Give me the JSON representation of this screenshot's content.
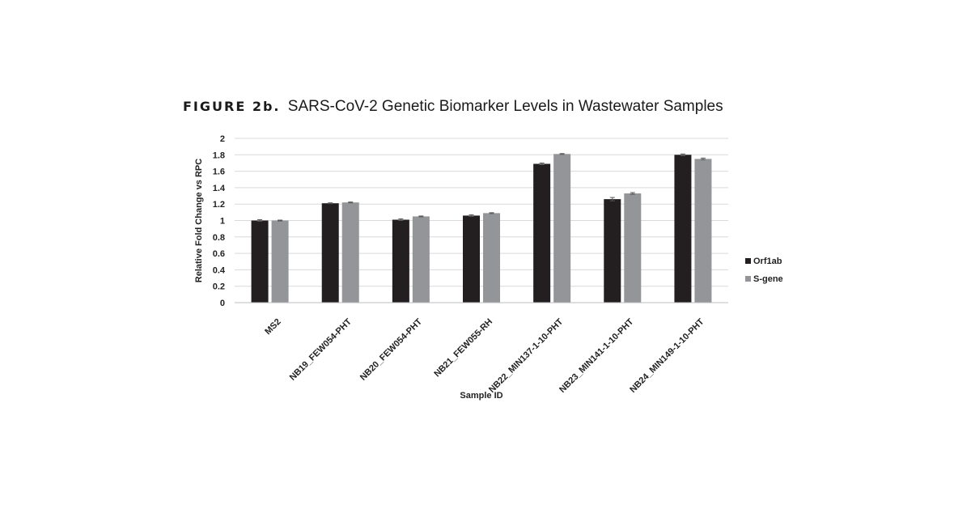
{
  "figure": {
    "label": "FIGURE 2b.",
    "title": "SARS-CoV-2 Genetic Biomarker Levels in Wastewater Samples"
  },
  "chart_data": {
    "type": "bar",
    "categories": [
      "MS2",
      "NB19_FEW054-PHT",
      "NB20_FEW054-PHT",
      "NB21_FEW055-RH",
      "NB22_MIN137-1-10-PHT",
      "NB23_MIN141-1-10-PHT",
      "NB24_MIN149-1-10-PHT"
    ],
    "series": [
      {
        "name": "Orf1ab",
        "color": "#231f20",
        "values": [
          1.0,
          1.21,
          1.01,
          1.06,
          1.69,
          1.26,
          1.8
        ],
        "errors": [
          0.01,
          0.005,
          0.01,
          0.01,
          0.01,
          0.02,
          0.01
        ]
      },
      {
        "name": "S-gene",
        "color": "#939598",
        "values": [
          1.0,
          1.22,
          1.05,
          1.09,
          1.81,
          1.33,
          1.75
        ],
        "errors": [
          0.005,
          0.005,
          0.005,
          0.005,
          0.005,
          0.01,
          0.01
        ]
      }
    ],
    "xlabel": "Sample ID",
    "ylabel": "Relative Fold Change vs RPC",
    "ylim": [
      0,
      2
    ],
    "yticks": [
      "0",
      "0.2",
      "0.4",
      "0.6",
      "0.8",
      "1",
      "1.2",
      "1.4",
      "1.6",
      "1.8",
      "2"
    ],
    "grid": true,
    "legend_position": "right"
  }
}
